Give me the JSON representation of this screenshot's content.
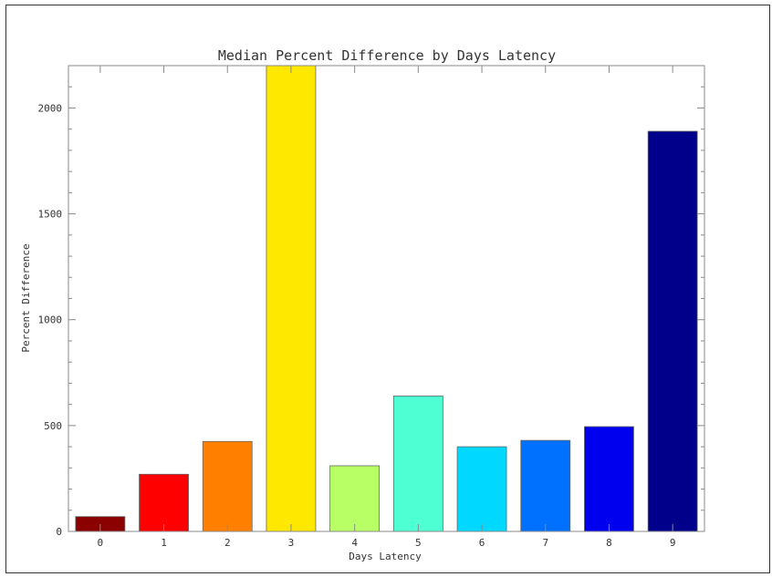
{
  "chart_data": {
    "type": "bar",
    "title": "Median Percent Difference by Days Latency",
    "xlabel": "Days Latency",
    "ylabel": "Percent Difference",
    "categories": [
      "0",
      "1",
      "2",
      "3",
      "4",
      "5",
      "6",
      "7",
      "8",
      "9"
    ],
    "values": [
      70,
      270,
      425,
      2200,
      310,
      640,
      400,
      430,
      495,
      1890
    ],
    "colors": [
      "#8b0000",
      "#ff0000",
      "#ff8000",
      "#ffe800",
      "#b8ff66",
      "#4dffd2",
      "#00d8ff",
      "#0070ff",
      "#0000ee",
      "#00008b"
    ],
    "ylim": [
      0,
      2200
    ],
    "yticks": [
      "0",
      "500",
      "1000",
      "1500",
      "2000"
    ],
    "grid": false
  }
}
